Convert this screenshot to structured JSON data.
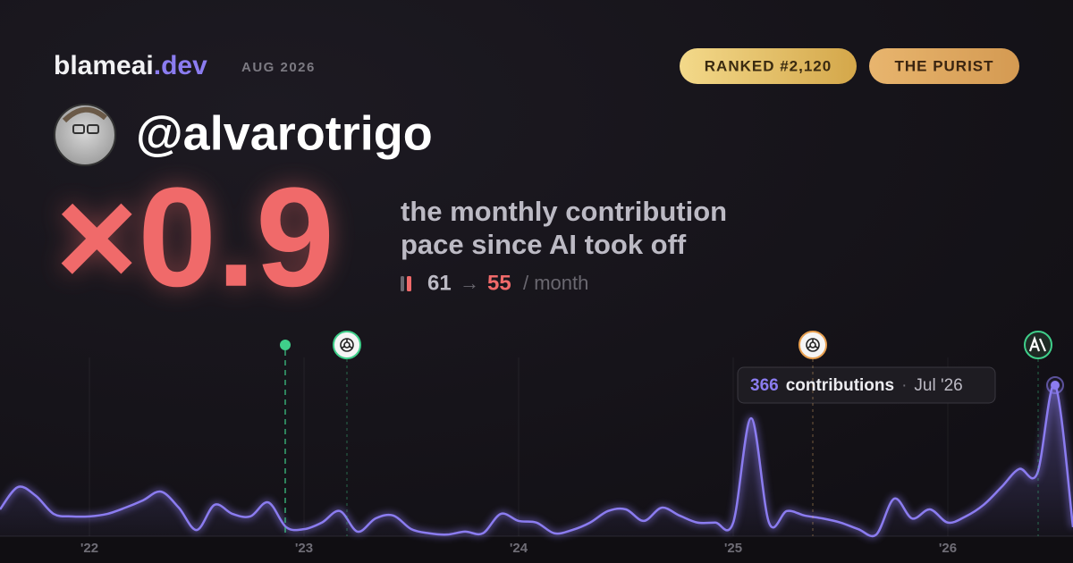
{
  "brand": {
    "name": "blameai",
    "tld": ".dev"
  },
  "period": "AUG 2026",
  "badges": [
    "RANKED #2,120",
    "THE PURIST"
  ],
  "username": "@alvarotrigo",
  "multiplier": "×0.9",
  "description": [
    "the monthly contribution",
    "pace since AI took off"
  ],
  "pace": {
    "before": 61,
    "arrow": "→",
    "after": 55,
    "unit": "/ month"
  },
  "chart_data": {
    "type": "area",
    "categories": [
      null,
      null,
      null,
      null,
      null,
      "'22",
      null,
      null,
      null,
      null,
      null,
      null,
      null,
      null,
      null,
      null,
      null,
      "'23",
      null,
      null,
      null,
      null,
      null,
      null,
      null,
      null,
      null,
      null,
      null,
      "'24",
      null,
      null,
      null,
      null,
      null,
      null,
      null,
      null,
      null,
      null,
      null,
      "'25",
      null,
      null,
      null,
      null,
      null,
      null,
      null,
      null,
      null,
      null,
      null,
      "'26",
      null,
      null,
      null,
      null,
      null,
      null,
      null
    ],
    "values": [
      65,
      119,
      98,
      54,
      48,
      48,
      54,
      69,
      87,
      108,
      69,
      15,
      76,
      54,
      48,
      82,
      22,
      17,
      33,
      61,
      11,
      43,
      50,
      17,
      7,
      4,
      11,
      7,
      54,
      37,
      33,
      7,
      15,
      33,
      61,
      65,
      37,
      69,
      50,
      33,
      33,
      33,
      286,
      33,
      61,
      50,
      43,
      33,
      17,
      4,
      91,
      43,
      65,
      33,
      48,
      76,
      119,
      163,
      152,
      366,
      22
    ],
    "color": "#8b7cf0",
    "tooltip": {
      "label": "contributions",
      "separator": "·",
      "date": "Jul '26"
    }
  }
}
